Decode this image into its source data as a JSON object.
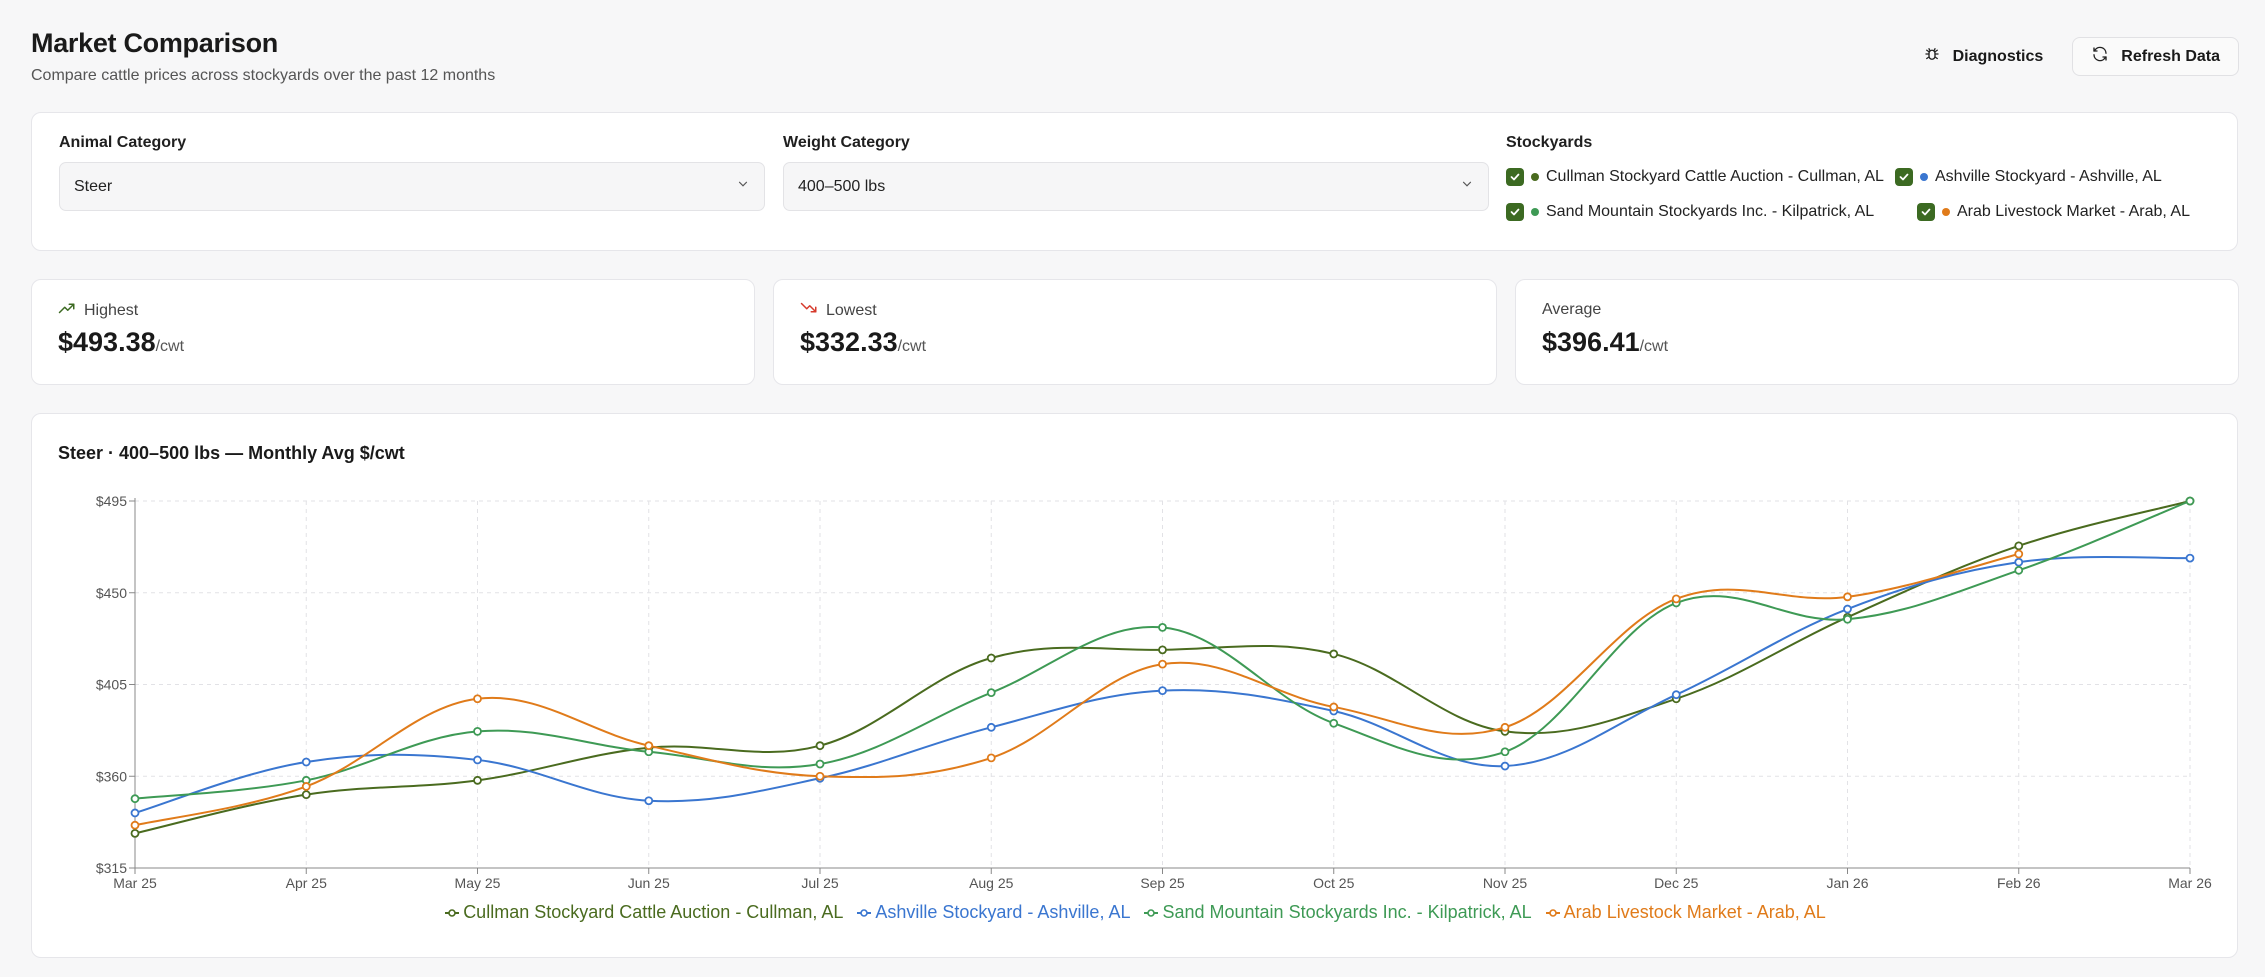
{
  "header": {
    "title": "Market Comparison",
    "subtitle": "Compare cattle prices across stockyards over the past 12 months",
    "diagnostics_label": "Diagnostics",
    "refresh_label": "Refresh Data"
  },
  "filters": {
    "animal_label": "Animal Category",
    "animal_value": "Steer",
    "weight_label": "Weight Category",
    "weight_value": "400–500 lbs",
    "stockyards_label": "Stockyards",
    "stockyards": [
      {
        "name": "Cullman Stockyard Cattle Auction - Cullman, AL",
        "color": "#4a6b1f",
        "checked": true
      },
      {
        "name": "Ashville Stockyard - Ashville, AL",
        "color": "#3a76d0",
        "checked": true
      },
      {
        "name": "Sand Mountain Stockyards Inc. - Kilpatrick, AL",
        "color": "#3e9a55",
        "checked": true
      },
      {
        "name": "Arab Livestock Market - Arab, AL",
        "color": "#e07b1a",
        "checked": true
      }
    ]
  },
  "stats": {
    "highest_label": "Highest",
    "highest_value": "$493.38",
    "lowest_label": "Lowest",
    "lowest_value": "$332.33",
    "average_label": "Average",
    "average_value": "$396.41",
    "unit": "/cwt"
  },
  "chart_data": {
    "type": "line",
    "title": "Steer · 400–500 lbs — Monthly Avg $/cwt",
    "x": [
      "Mar 25",
      "Apr 25",
      "May 25",
      "Jun 25",
      "Jul 25",
      "Aug 25",
      "Sep 25",
      "Oct 25",
      "Nov 25",
      "Dec 25",
      "Jan 26",
      "Feb 26",
      "Mar 26"
    ],
    "ylim": [
      315,
      495
    ],
    "yticks": [
      315,
      360,
      405,
      450,
      495
    ],
    "ytick_labels": [
      "$315",
      "$360",
      "$405",
      "$450",
      "$495"
    ],
    "grid": true,
    "legend_position": "bottom",
    "series": [
      {
        "name": "Cullman Stockyard Cattle Auction - Cullman, AL",
        "color": "#4a6b1f",
        "values": [
          332,
          351,
          358,
          374,
          375,
          418,
          422,
          420,
          382,
          398,
          438,
          473,
          495
        ]
      },
      {
        "name": "Ashville Stockyard - Ashville, AL",
        "color": "#3a76d0",
        "values": [
          342,
          367,
          368,
          348,
          359,
          384,
          402,
          392,
          365,
          400,
          442,
          465,
          467
        ]
      },
      {
        "name": "Sand Mountain Stockyards Inc. - Kilpatrick, AL",
        "color": "#3e9a55",
        "values": [
          349,
          358,
          382,
          372,
          366,
          401,
          433,
          386,
          372,
          445,
          437,
          461,
          495
        ]
      },
      {
        "name": "Arab Livestock Market - Arab, AL",
        "color": "#e07b1a",
        "values": [
          336,
          355,
          398,
          375,
          360,
          369,
          415,
          394,
          384,
          447,
          448,
          469,
          null
        ]
      }
    ]
  }
}
